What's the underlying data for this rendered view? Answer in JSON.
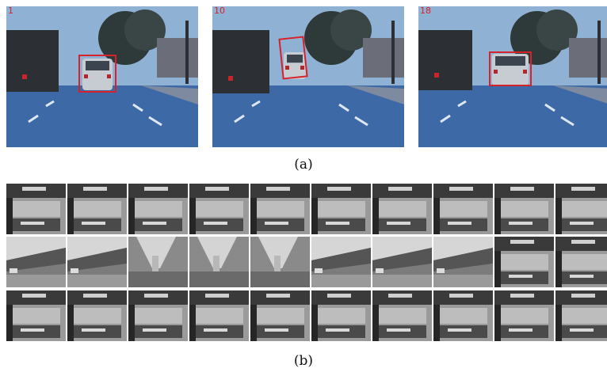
{
  "figure": {
    "frames": [
      {
        "label": "1"
      },
      {
        "label": "10"
      },
      {
        "label": "18"
      }
    ],
    "caption_a": "(a)",
    "caption_b": "(b)",
    "box_color": "#d8222a",
    "patch_rows": [
      {
        "kinds": [
          "car",
          "car",
          "car",
          "car",
          "car",
          "car",
          "car",
          "car",
          "car",
          "car"
        ]
      },
      {
        "kinds": [
          "bg",
          "bg",
          "pole",
          "pole",
          "pole",
          "bg",
          "bg",
          "bg",
          "car",
          "car"
        ]
      },
      {
        "kinds": [
          "car",
          "car",
          "car",
          "car",
          "car",
          "car",
          "car",
          "car",
          "car",
          "car"
        ]
      }
    ]
  }
}
